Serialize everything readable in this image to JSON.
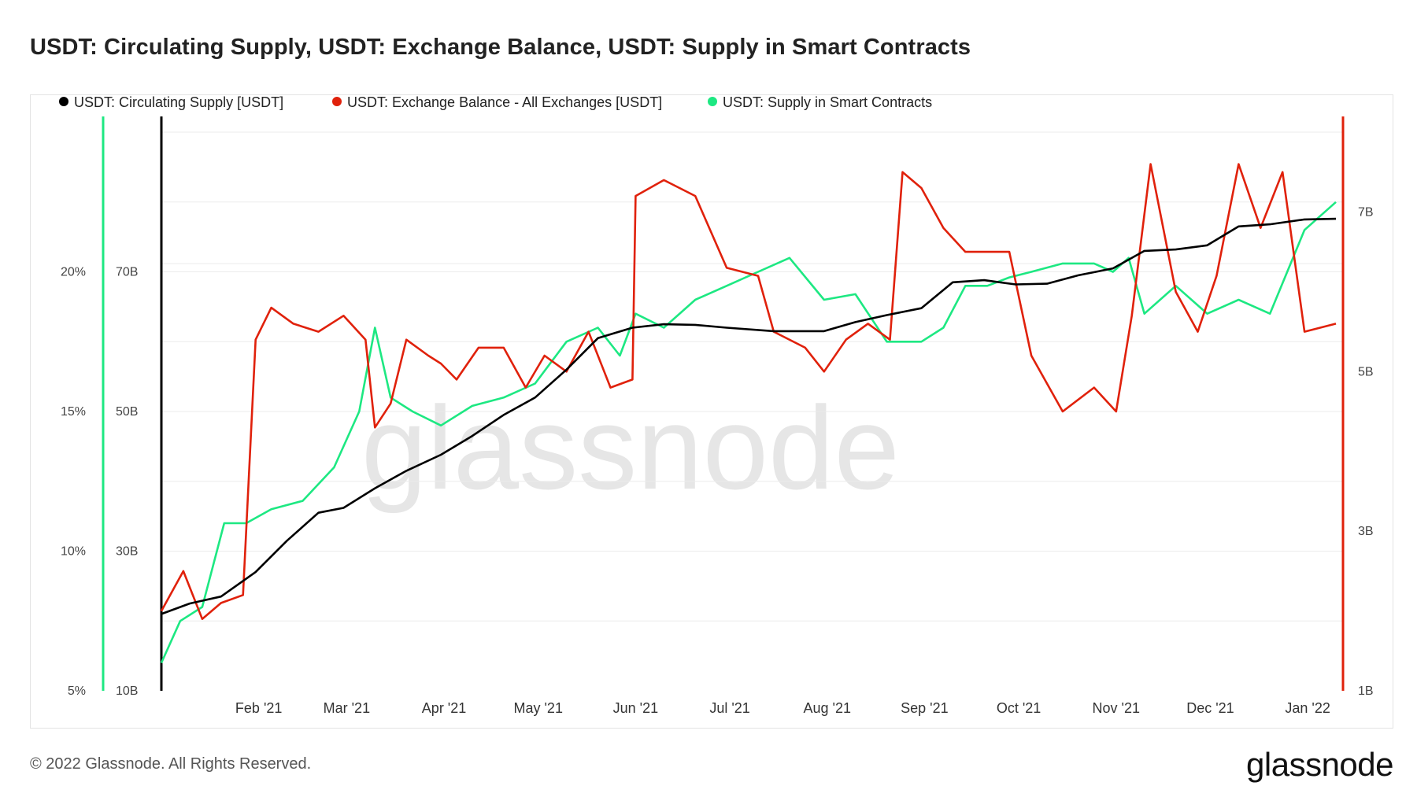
{
  "title": "USDT: Circulating Supply, USDT: Exchange Balance, USDT: Supply in Smart Contracts",
  "footer": "© 2022 Glassnode. All Rights Reserved.",
  "brand": "glassnode",
  "watermark": "glassnode",
  "colors": {
    "circulating": "#000000",
    "exchange": "#e0210b",
    "smart": "#1de882",
    "grid": "#ebebeb"
  },
  "chart_data": {
    "type": "line",
    "legend": [
      {
        "name": "USDT: Circulating Supply [USDT]",
        "color": "#000000"
      },
      {
        "name": "USDT: Exchange Balance - All Exchanges [USDT]",
        "color": "#e0210b"
      },
      {
        "name": "USDT: Supply in Smart Contracts",
        "color": "#1de882"
      }
    ],
    "legend_position": "top-left",
    "grid": true,
    "x_ticks": [
      "Feb '21",
      "Mar '21",
      "Apr '21",
      "May '21",
      "Jun '21",
      "Jul '21",
      "Aug '21",
      "Sep '21",
      "Oct '21",
      "Nov '21",
      "Dec '21",
      "Jan '22"
    ],
    "y_axes": {
      "percent": {
        "ticks": [
          "5%",
          "10%",
          "15%",
          "20%"
        ],
        "range": [
          5,
          25
        ]
      },
      "supply": {
        "ticks": [
          "10B",
          "30B",
          "50B",
          "70B"
        ],
        "range": [
          10,
          90
        ],
        "unit": "B"
      },
      "exchange": {
        "ticks": [
          "1B",
          "3B",
          "5B",
          "7B"
        ],
        "range": [
          1,
          8
        ],
        "unit": "B"
      }
    },
    "series": [
      {
        "name": "USDT: Circulating Supply [USDT]",
        "axis": "supply",
        "points": [
          [
            "2021-01-01",
            21.0
          ],
          [
            "2021-01-10",
            22.5
          ],
          [
            "2021-01-20",
            23.5
          ],
          [
            "2021-01-31",
            27.0
          ],
          [
            "2021-02-10",
            31.5
          ],
          [
            "2021-02-20",
            35.5
          ],
          [
            "2021-02-28",
            36.2
          ],
          [
            "2021-03-10",
            39.0
          ],
          [
            "2021-03-20",
            41.5
          ],
          [
            "2021-03-31",
            43.8
          ],
          [
            "2021-04-10",
            46.5
          ],
          [
            "2021-04-20",
            49.5
          ],
          [
            "2021-04-30",
            52.0
          ],
          [
            "2021-05-10",
            56.0
          ],
          [
            "2021-05-20",
            60.5
          ],
          [
            "2021-05-31",
            62.0
          ],
          [
            "2021-06-10",
            62.5
          ],
          [
            "2021-06-20",
            62.4
          ],
          [
            "2021-06-30",
            62.0
          ],
          [
            "2021-07-15",
            61.5
          ],
          [
            "2021-07-31",
            61.5
          ],
          [
            "2021-08-10",
            62.8
          ],
          [
            "2021-08-20",
            63.8
          ],
          [
            "2021-08-31",
            64.8
          ],
          [
            "2021-09-10",
            68.5
          ],
          [
            "2021-09-20",
            68.8
          ],
          [
            "2021-09-30",
            68.2
          ],
          [
            "2021-10-10",
            68.3
          ],
          [
            "2021-10-20",
            69.5
          ],
          [
            "2021-10-31",
            70.5
          ],
          [
            "2021-11-10",
            73.0
          ],
          [
            "2021-11-20",
            73.2
          ],
          [
            "2021-11-30",
            73.8
          ],
          [
            "2021-12-10",
            76.5
          ],
          [
            "2021-12-20",
            76.8
          ],
          [
            "2021-12-31",
            77.5
          ],
          [
            "2022-01-10",
            77.6
          ]
        ]
      },
      {
        "name": "USDT: Exchange Balance - All Exchanges [USDT]",
        "axis": "exchange",
        "points": [
          [
            "2021-01-01",
            2.0
          ],
          [
            "2021-01-08",
            2.5
          ],
          [
            "2021-01-14",
            1.9
          ],
          [
            "2021-01-20",
            2.1
          ],
          [
            "2021-01-27",
            2.2
          ],
          [
            "2021-01-31",
            5.4
          ],
          [
            "2021-02-05",
            5.8
          ],
          [
            "2021-02-12",
            5.6
          ],
          [
            "2021-02-20",
            5.5
          ],
          [
            "2021-02-28",
            5.7
          ],
          [
            "2021-03-07",
            5.4
          ],
          [
            "2021-03-10",
            4.3
          ],
          [
            "2021-03-15",
            4.6
          ],
          [
            "2021-03-20",
            5.4
          ],
          [
            "2021-03-27",
            5.2
          ],
          [
            "2021-03-31",
            5.1
          ],
          [
            "2021-04-05",
            4.9
          ],
          [
            "2021-04-12",
            5.3
          ],
          [
            "2021-04-20",
            5.3
          ],
          [
            "2021-04-27",
            4.8
          ],
          [
            "2021-05-03",
            5.2
          ],
          [
            "2021-05-10",
            5.0
          ],
          [
            "2021-05-17",
            5.5
          ],
          [
            "2021-05-24",
            4.8
          ],
          [
            "2021-05-31",
            4.9
          ],
          [
            "2021-06-01",
            7.2
          ],
          [
            "2021-06-10",
            7.4
          ],
          [
            "2021-06-20",
            7.2
          ],
          [
            "2021-06-30",
            6.3
          ],
          [
            "2021-07-10",
            6.2
          ],
          [
            "2021-07-15",
            5.5
          ],
          [
            "2021-07-25",
            5.3
          ],
          [
            "2021-07-31",
            5.0
          ],
          [
            "2021-08-07",
            5.4
          ],
          [
            "2021-08-14",
            5.6
          ],
          [
            "2021-08-21",
            5.4
          ],
          [
            "2021-08-25",
            7.5
          ],
          [
            "2021-08-31",
            7.3
          ],
          [
            "2021-09-07",
            6.8
          ],
          [
            "2021-09-14",
            6.5
          ],
          [
            "2021-09-21",
            6.5
          ],
          [
            "2021-09-28",
            6.5
          ],
          [
            "2021-10-05",
            5.2
          ],
          [
            "2021-10-15",
            4.5
          ],
          [
            "2021-10-25",
            4.8
          ],
          [
            "2021-11-01",
            4.5
          ],
          [
            "2021-11-06",
            5.7
          ],
          [
            "2021-11-12",
            7.6
          ],
          [
            "2021-11-20",
            6.0
          ],
          [
            "2021-11-27",
            5.5
          ],
          [
            "2021-12-03",
            6.2
          ],
          [
            "2021-12-10",
            7.6
          ],
          [
            "2021-12-17",
            6.8
          ],
          [
            "2021-12-24",
            7.5
          ],
          [
            "2021-12-31",
            5.5
          ],
          [
            "2022-01-10",
            5.6
          ]
        ]
      },
      {
        "name": "USDT: Supply in Smart Contracts",
        "axis": "percent",
        "points": [
          [
            "2021-01-01",
            6.0
          ],
          [
            "2021-01-07",
            7.5
          ],
          [
            "2021-01-14",
            8.0
          ],
          [
            "2021-01-21",
            11.0
          ],
          [
            "2021-01-28",
            11.0
          ],
          [
            "2021-02-05",
            11.5
          ],
          [
            "2021-02-15",
            11.8
          ],
          [
            "2021-02-25",
            13.0
          ],
          [
            "2021-03-05",
            15.0
          ],
          [
            "2021-03-10",
            18.0
          ],
          [
            "2021-03-15",
            15.5
          ],
          [
            "2021-03-22",
            15.0
          ],
          [
            "2021-03-31",
            14.5
          ],
          [
            "2021-04-10",
            15.2
          ],
          [
            "2021-04-20",
            15.5
          ],
          [
            "2021-04-30",
            16.0
          ],
          [
            "2021-05-10",
            17.5
          ],
          [
            "2021-05-20",
            18.0
          ],
          [
            "2021-05-27",
            17.0
          ],
          [
            "2021-06-01",
            18.5
          ],
          [
            "2021-06-10",
            18.0
          ],
          [
            "2021-06-20",
            19.0
          ],
          [
            "2021-06-30",
            19.5
          ],
          [
            "2021-07-10",
            20.0
          ],
          [
            "2021-07-20",
            20.5
          ],
          [
            "2021-07-31",
            19.0
          ],
          [
            "2021-08-10",
            19.2
          ],
          [
            "2021-08-20",
            17.5
          ],
          [
            "2021-08-31",
            17.5
          ],
          [
            "2021-09-07",
            18.0
          ],
          [
            "2021-09-14",
            19.5
          ],
          [
            "2021-09-21",
            19.5
          ],
          [
            "2021-09-28",
            19.8
          ],
          [
            "2021-10-05",
            20.0
          ],
          [
            "2021-10-15",
            20.3
          ],
          [
            "2021-10-25",
            20.3
          ],
          [
            "2021-10-31",
            20.0
          ],
          [
            "2021-11-05",
            20.5
          ],
          [
            "2021-11-10",
            18.5
          ],
          [
            "2021-11-20",
            19.5
          ],
          [
            "2021-11-30",
            18.5
          ],
          [
            "2021-12-10",
            19.0
          ],
          [
            "2021-12-20",
            18.5
          ],
          [
            "2021-12-31",
            21.5
          ],
          [
            "2022-01-10",
            22.5
          ]
        ]
      }
    ]
  }
}
